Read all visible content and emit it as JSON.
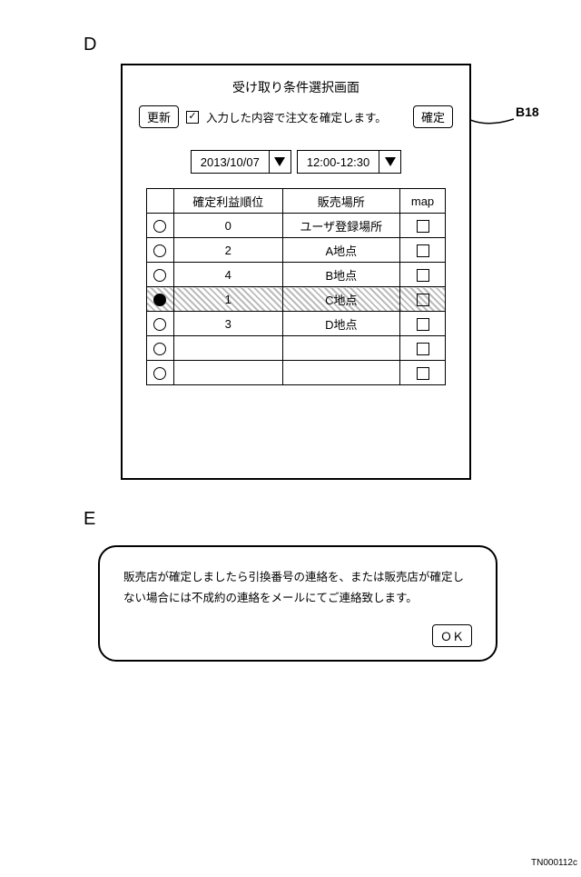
{
  "labels": {
    "d": "D",
    "e": "E"
  },
  "callout": {
    "b18": "B18"
  },
  "panelD": {
    "title": "受け取り条件選択画面",
    "update_btn": "更新",
    "confirm_text": "入力した内容で注文を確定します。",
    "confirm_btn": "確定",
    "confirm_checked": true,
    "date": "2013/10/07",
    "time": "12:00-12:30",
    "columns": {
      "rank": "確定利益順位",
      "place": "販売場所",
      "map": "map"
    },
    "rows": [
      {
        "selected": false,
        "rank": "0",
        "place": "ユーザ登録場所"
      },
      {
        "selected": false,
        "rank": "2",
        "place": "A地点"
      },
      {
        "selected": false,
        "rank": "4",
        "place": "B地点"
      },
      {
        "selected": true,
        "rank": "1",
        "place": "C地点"
      },
      {
        "selected": false,
        "rank": "3",
        "place": "D地点"
      },
      {
        "selected": false,
        "rank": "",
        "place": ""
      },
      {
        "selected": false,
        "rank": "",
        "place": ""
      }
    ]
  },
  "panelE": {
    "text": "販売店が確定しましたら引換番号の連絡を、または販売店が確定しない場合には不成約の連絡をメールにてご連絡致します。",
    "ok": "ＯＫ"
  },
  "footer": "TN000112c"
}
